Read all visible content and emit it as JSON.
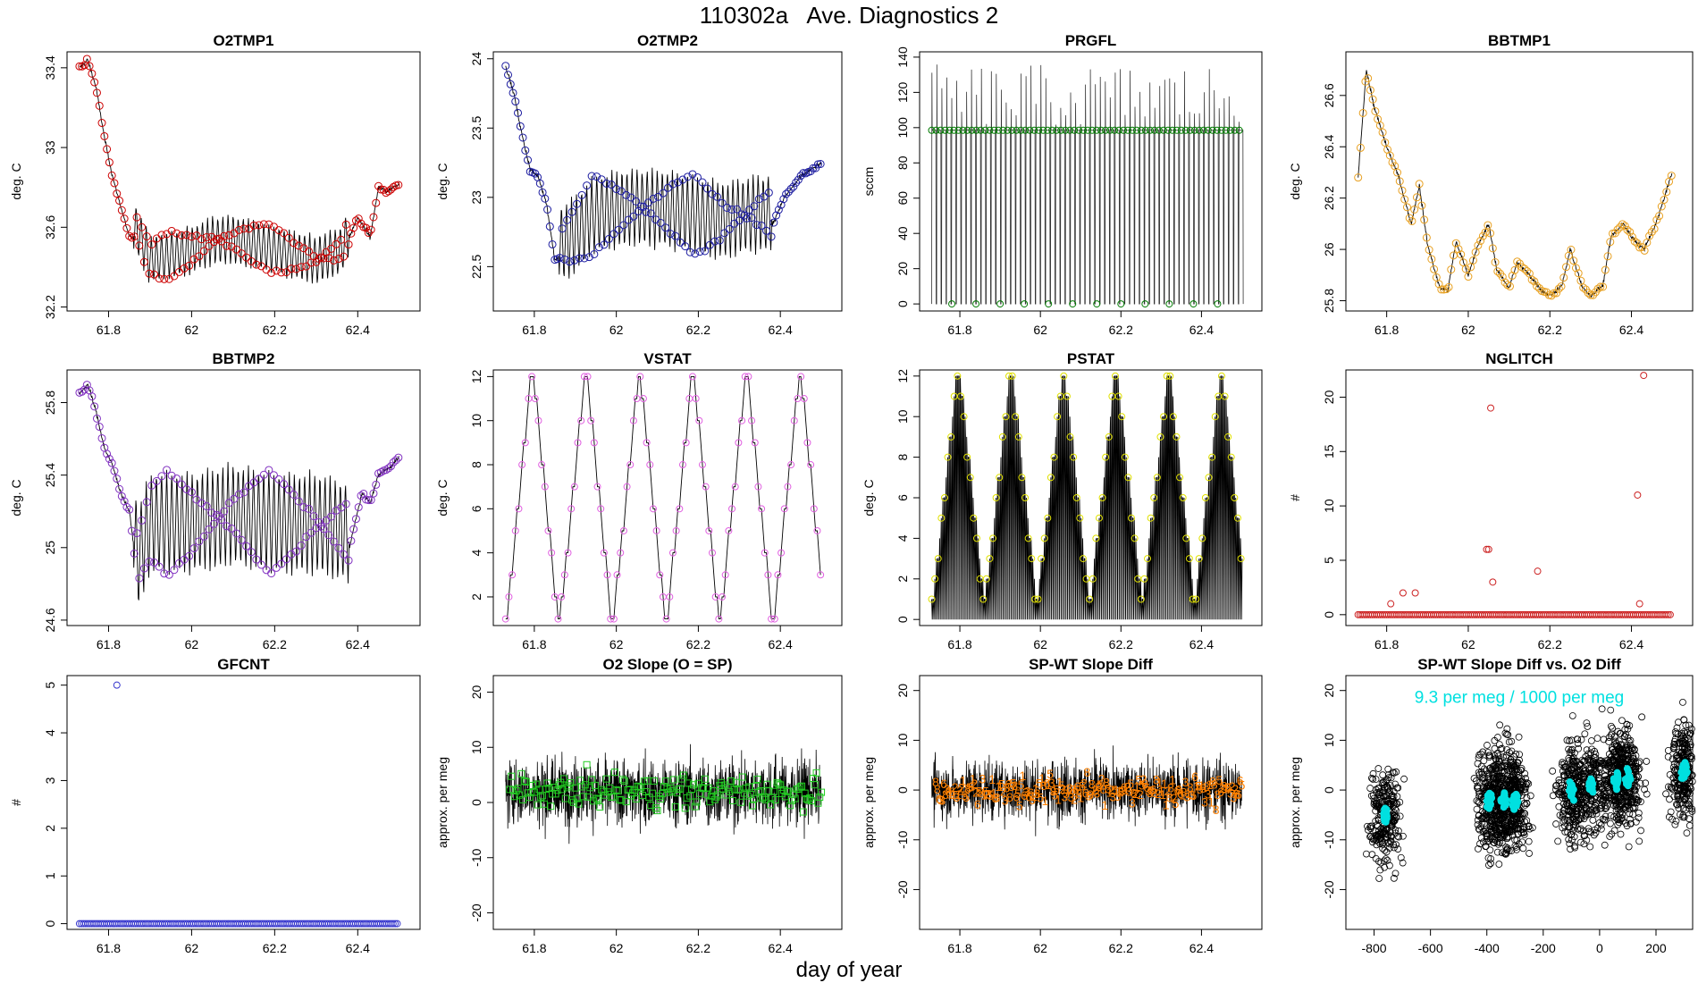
{
  "figure": {
    "title": "110302a   Ave. Diagnostics 2",
    "xlabel": "day of year"
  },
  "chart_data": [
    {
      "type": "line",
      "title": "O2TMP1",
      "ylabel": "deg. C",
      "xlim": [
        61.7,
        62.55
      ],
      "ylim": [
        32.18,
        33.48
      ],
      "yticks": [
        32.2,
        32.6,
        33.0,
        33.4
      ],
      "xticks": [
        61.8,
        62.0,
        62.2,
        62.4
      ],
      "marker_color": "#cc0000",
      "trend": [
        [
          61.73,
          33.4
        ],
        [
          61.75,
          33.44
        ],
        [
          61.77,
          33.3
        ],
        [
          61.79,
          33.05
        ],
        [
          61.81,
          32.85
        ],
        [
          61.83,
          32.7
        ],
        [
          61.85,
          32.55
        ],
        [
          61.87,
          32.55
        ],
        [
          61.9,
          32.4
        ],
        [
          61.94,
          32.42
        ],
        [
          62.0,
          32.45
        ],
        [
          62.05,
          32.5
        ],
        [
          62.1,
          32.5
        ],
        [
          62.15,
          32.48
        ],
        [
          62.2,
          32.45
        ],
        [
          62.25,
          32.42
        ],
        [
          62.3,
          32.4
        ],
        [
          62.36,
          32.45
        ],
        [
          62.4,
          32.65
        ],
        [
          62.43,
          32.55
        ],
        [
          62.45,
          32.8
        ],
        [
          62.47,
          32.78
        ],
        [
          62.5,
          32.82
        ]
      ],
      "cycle_start": 61.86,
      "cycle_end": 62.38,
      "cycle_period": 0.0123,
      "cycle_amp": 0.18
    },
    {
      "type": "line",
      "title": "O2TMP2",
      "ylabel": "deg. C",
      "xlim": [
        61.7,
        62.55
      ],
      "ylim": [
        22.18,
        24.05
      ],
      "yticks": [
        22.5,
        23.0,
        23.5,
        24.0
      ],
      "xticks": [
        61.8,
        62.0,
        62.2,
        62.4
      ],
      "marker_color": "#1c1ca0",
      "trend": [
        [
          61.73,
          23.95
        ],
        [
          61.75,
          23.75
        ],
        [
          61.77,
          23.45
        ],
        [
          61.79,
          23.2
        ],
        [
          61.81,
          23.15
        ],
        [
          61.83,
          22.95
        ],
        [
          61.85,
          22.55
        ],
        [
          61.88,
          22.6
        ],
        [
          61.95,
          22.8
        ],
        [
          62.05,
          22.85
        ],
        [
          62.15,
          22.82
        ],
        [
          62.25,
          22.75
        ],
        [
          62.33,
          22.8
        ],
        [
          62.38,
          22.8
        ],
        [
          62.41,
          23.0
        ],
        [
          62.45,
          23.15
        ],
        [
          62.5,
          23.25
        ]
      ],
      "cycle_start": 61.86,
      "cycle_end": 62.38,
      "cycle_period": 0.0123,
      "cycle_amp": 0.42
    },
    {
      "type": "line",
      "title": "PRGFL",
      "ylabel": "sccm",
      "xlim": [
        61.7,
        62.55
      ],
      "ylim": [
        -4,
        143
      ],
      "yticks": [
        0,
        20,
        40,
        60,
        80,
        100,
        120,
        140
      ],
      "xticks": [
        61.8,
        62.0,
        62.2,
        62.4
      ],
      "marker_color": "#007a00",
      "levels": [
        0,
        98.5
      ],
      "spike_max": 136,
      "period": 0.0123
    },
    {
      "type": "line",
      "title": "BBTMP1",
      "ylabel": "deg. C",
      "xlim": [
        61.7,
        62.55
      ],
      "ylim": [
        25.76,
        26.77
      ],
      "yticks": [
        25.8,
        26.0,
        26.2,
        26.4,
        26.6
      ],
      "xticks": [
        61.8,
        62.0,
        62.2,
        62.4
      ],
      "marker_color": "#e8a020",
      "trend": [
        [
          61.73,
          26.28
        ],
        [
          61.75,
          26.7
        ],
        [
          61.77,
          26.55
        ],
        [
          61.8,
          26.4
        ],
        [
          61.83,
          26.28
        ],
        [
          61.86,
          26.1
        ],
        [
          61.88,
          26.25
        ],
        [
          61.9,
          26.02
        ],
        [
          61.93,
          25.85
        ],
        [
          61.95,
          25.84
        ],
        [
          61.97,
          26.03
        ],
        [
          62.0,
          25.9
        ],
        [
          62.02,
          26.0
        ],
        [
          62.05,
          26.1
        ],
        [
          62.07,
          25.92
        ],
        [
          62.1,
          25.85
        ],
        [
          62.12,
          25.95
        ],
        [
          62.15,
          25.9
        ],
        [
          62.18,
          25.84
        ],
        [
          62.2,
          25.82
        ],
        [
          62.23,
          25.86
        ],
        [
          62.25,
          26.0
        ],
        [
          62.28,
          25.85
        ],
        [
          62.3,
          25.82
        ],
        [
          62.33,
          25.86
        ],
        [
          62.35,
          26.05
        ],
        [
          62.38,
          26.1
        ],
        [
          62.4,
          26.05
        ],
        [
          62.43,
          26.0
        ],
        [
          62.46,
          26.1
        ],
        [
          62.48,
          26.2
        ],
        [
          62.5,
          26.3
        ]
      ]
    },
    {
      "type": "line",
      "title": "BBTMP2",
      "ylabel": "deg. C",
      "xlim": [
        61.7,
        62.55
      ],
      "ylim": [
        24.57,
        25.98
      ],
      "yticks": [
        24.6,
        25.0,
        25.4,
        25.8
      ],
      "xticks": [
        61.8,
        62.0,
        62.2,
        62.4
      ],
      "marker_color": "#8030c0",
      "trend": [
        [
          61.73,
          25.85
        ],
        [
          61.75,
          25.9
        ],
        [
          61.77,
          25.75
        ],
        [
          61.79,
          25.55
        ],
        [
          61.81,
          25.45
        ],
        [
          61.83,
          25.3
        ],
        [
          61.85,
          25.2
        ],
        [
          61.87,
          24.85
        ],
        [
          61.9,
          25.05
        ],
        [
          62.0,
          25.05
        ],
        [
          62.1,
          25.1
        ],
        [
          62.2,
          25.05
        ],
        [
          62.3,
          25.05
        ],
        [
          62.38,
          25.0
        ],
        [
          62.41,
          25.3
        ],
        [
          62.43,
          25.25
        ],
        [
          62.45,
          25.4
        ],
        [
          62.48,
          25.45
        ],
        [
          62.5,
          25.5
        ]
      ],
      "cycle_start": 61.86,
      "cycle_end": 62.38,
      "cycle_period": 0.0123,
      "cycle_amp": 0.42
    },
    {
      "type": "line",
      "title": "VSTAT",
      "ylabel": "deg. C",
      "xlim": [
        61.7,
        62.55
      ],
      "ylim": [
        0.7,
        12.3
      ],
      "yticks": [
        2,
        4,
        6,
        8,
        10,
        12
      ],
      "xticks": [
        61.8,
        62.0,
        62.2,
        62.4
      ],
      "marker_color": "#e060e0",
      "staircase": {
        "start": 61.73,
        "period": 0.1305,
        "min": 1,
        "max": 12
      }
    },
    {
      "type": "line",
      "title": "PSTAT",
      "ylabel": "deg. C",
      "xlim": [
        61.7,
        62.55
      ],
      "ylim": [
        -0.3,
        12.3
      ],
      "yticks": [
        0,
        2,
        4,
        6,
        8,
        10,
        12
      ],
      "xticks": [
        61.8,
        62.0,
        62.2,
        62.4
      ],
      "marker_color": "#e0e000",
      "staircase": {
        "start": 61.73,
        "period": 0.1305,
        "min": 1,
        "max": 12
      }
    },
    {
      "type": "scatter",
      "title": "NGLITCH",
      "ylabel": "#",
      "xlim": [
        61.7,
        62.55
      ],
      "ylim": [
        -1,
        22.5
      ],
      "yticks": [
        0,
        5,
        10,
        15,
        20
      ],
      "xticks": [
        61.8,
        62.0,
        62.2,
        62.4
      ],
      "marker_color": "#cc2222",
      "points": [
        [
          61.81,
          1
        ],
        [
          61.84,
          2
        ],
        [
          61.87,
          2
        ],
        [
          62.045,
          6
        ],
        [
          62.05,
          6
        ],
        [
          62.055,
          19
        ],
        [
          62.06,
          3
        ],
        [
          62.17,
          4
        ],
        [
          62.415,
          11
        ],
        [
          62.42,
          1
        ],
        [
          62.43,
          22
        ]
      ],
      "baseline": 0
    },
    {
      "type": "scatter",
      "title": "GFCNT",
      "ylabel": "#",
      "xlim": [
        61.7,
        62.55
      ],
      "ylim": [
        -0.12,
        5.2
      ],
      "yticks": [
        0,
        1,
        2,
        3,
        4,
        5
      ],
      "xticks": [
        61.8,
        62.0,
        62.2,
        62.4
      ],
      "marker_color": "#3333cc",
      "points": [
        [
          61.82,
          5
        ]
      ],
      "baseline": 0
    },
    {
      "type": "line",
      "title": "O2 Slope (O = SP)",
      "ylabel": "approx. per meg",
      "xlim": [
        61.7,
        62.55
      ],
      "ylim": [
        -23,
        23
      ],
      "yticks": [
        -20,
        -10,
        0,
        10,
        20
      ],
      "xticks": [
        61.8,
        62.0,
        62.2,
        62.4
      ],
      "marker_color": "#22cc22",
      "noise_center": 2,
      "noise_spread": 6
    },
    {
      "type": "line",
      "title": "SP-WT Slope Diff",
      "ylabel": "approx. per meg",
      "xlim": [
        61.7,
        62.55
      ],
      "ylim": [
        -28,
        23
      ],
      "yticks": [
        -20,
        -10,
        0,
        10,
        20
      ],
      "xticks": [
        61.8,
        62.0,
        62.2,
        62.4
      ],
      "marker_color": "#ff8000",
      "noise_center": 0,
      "noise_spread": 6
    },
    {
      "type": "scatter",
      "title": "SP-WT Slope Diff vs. O2 Diff",
      "ylabel": "approx. per meg",
      "xlim": [
        -900,
        330
      ],
      "ylim": [
        -28,
        23
      ],
      "yticks": [
        -20,
        -10,
        0,
        10,
        20
      ],
      "xticks": [
        -800,
        -600,
        -400,
        -200,
        0,
        200
      ],
      "marker_color": "#00e0e0",
      "annotation": "9.3 per meg / 1000 per meg",
      "clusters": [
        [
          -760,
          -5
        ],
        [
          -390,
          -2
        ],
        [
          -340,
          -2
        ],
        [
          -300,
          -2
        ],
        [
          -100,
          0
        ],
        [
          -30,
          1
        ],
        [
          60,
          2
        ],
        [
          100,
          2
        ],
        [
          300,
          4
        ]
      ]
    }
  ]
}
